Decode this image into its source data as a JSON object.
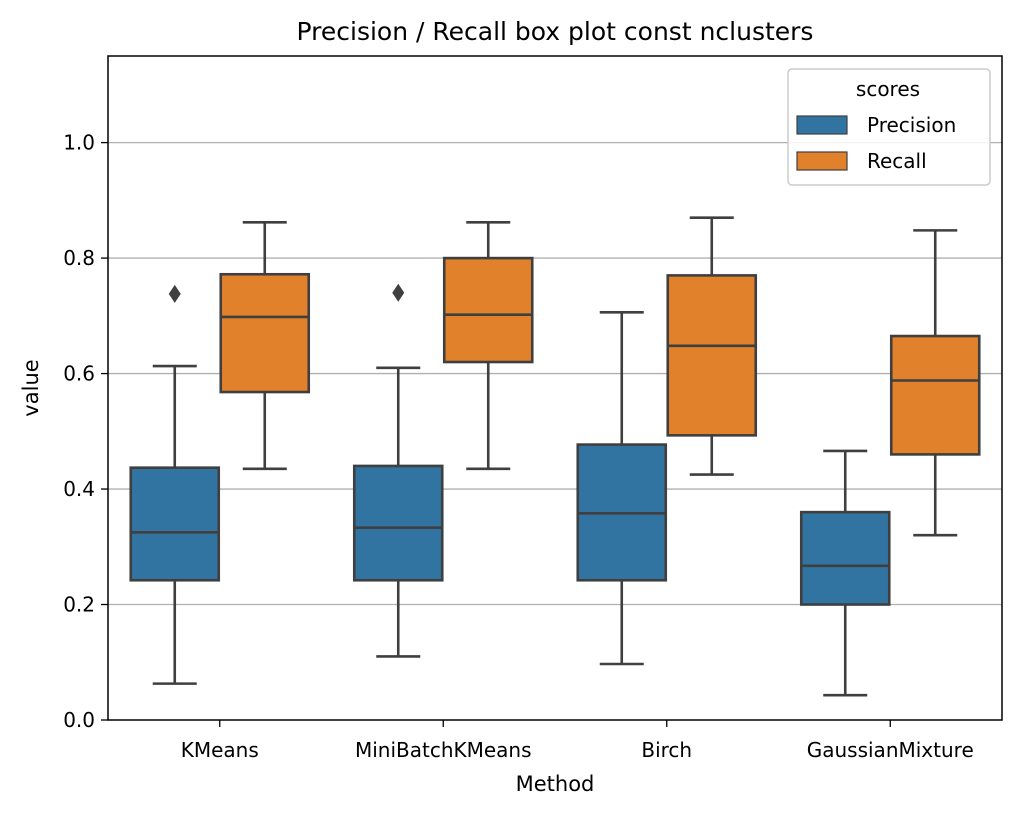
{
  "chart_data": {
    "type": "box",
    "title": "Precision / Recall box plot const nclusters",
    "xlabel": "Method",
    "ylabel": "value",
    "ylim": [
      0,
      1.15
    ],
    "yticks": [
      "0.0",
      "0.2",
      "0.4",
      "0.6",
      "0.8",
      "1.0"
    ],
    "grid": "horizontal",
    "legend": {
      "title": "scores",
      "placement": "top-right"
    },
    "categories": [
      "KMeans",
      "MiniBatchKMeans",
      "Birch",
      "GaussianMixture"
    ],
    "series": [
      {
        "name": "Precision",
        "color": "#3274a1",
        "boxes": [
          {
            "whisker_low": 0.063,
            "q1": 0.242,
            "median": 0.325,
            "q3": 0.437,
            "whisker_high": 0.613,
            "outliers": [
              0.738
            ]
          },
          {
            "whisker_low": 0.11,
            "q1": 0.242,
            "median": 0.333,
            "q3": 0.44,
            "whisker_high": 0.61,
            "outliers": [
              0.74
            ]
          },
          {
            "whisker_low": 0.097,
            "q1": 0.242,
            "median": 0.358,
            "q3": 0.477,
            "whisker_high": 0.706,
            "outliers": []
          },
          {
            "whisker_low": 0.043,
            "q1": 0.2,
            "median": 0.267,
            "q3": 0.36,
            "whisker_high": 0.466,
            "outliers": []
          }
        ]
      },
      {
        "name": "Recall",
        "color": "#e1812c",
        "boxes": [
          {
            "whisker_low": 0.435,
            "q1": 0.568,
            "median": 0.698,
            "q3": 0.772,
            "whisker_high": 0.862,
            "outliers": []
          },
          {
            "whisker_low": 0.435,
            "q1": 0.62,
            "median": 0.702,
            "q3": 0.8,
            "whisker_high": 0.862,
            "outliers": []
          },
          {
            "whisker_low": 0.425,
            "q1": 0.493,
            "median": 0.648,
            "q3": 0.77,
            "whisker_high": 0.87,
            "outliers": []
          },
          {
            "whisker_low": 0.32,
            "q1": 0.46,
            "median": 0.588,
            "q3": 0.665,
            "whisker_high": 0.848,
            "outliers": []
          }
        ]
      }
    ]
  }
}
